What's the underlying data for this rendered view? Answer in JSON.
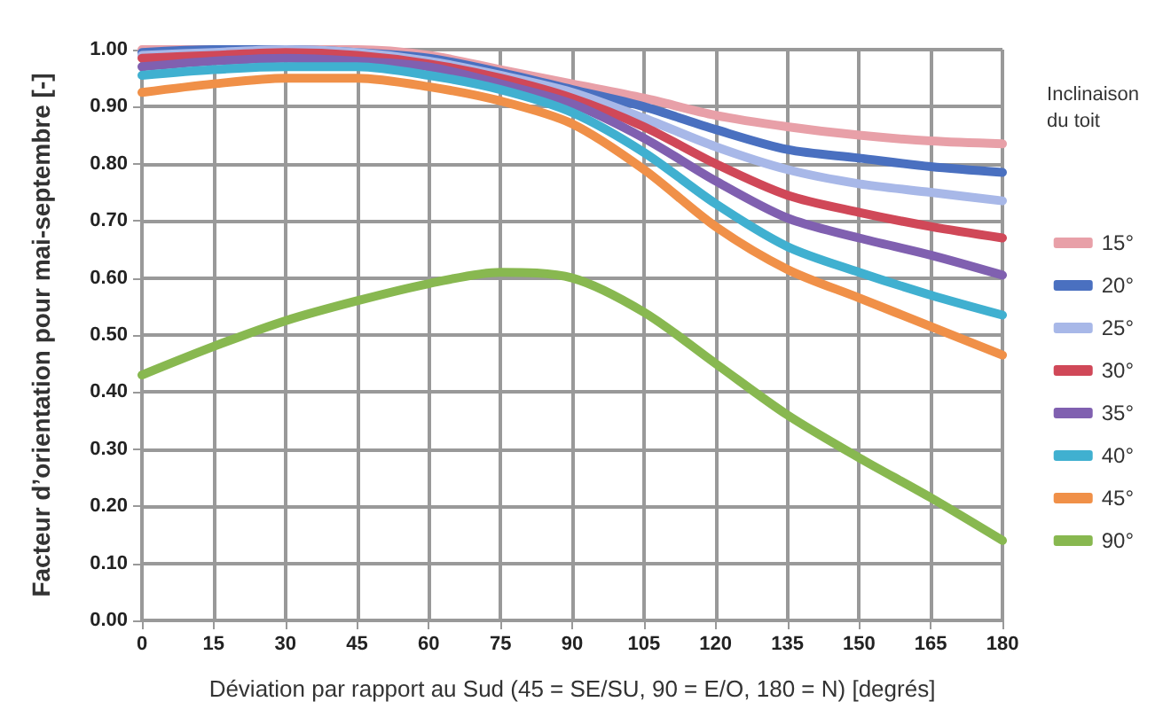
{
  "chart_data": {
    "type": "line",
    "xlabel": "Déviation par rapport au Sud (45 = SE/SU, 90 = E/O, 180 = N) [degrés]",
    "ylabel": "Facteur d’orientation pour mai-septembre [-]",
    "legend_title": "Inclinaison\ndu toit",
    "legend": "right",
    "grid": true,
    "marker": "none",
    "line_style": "solid",
    "x": [
      0,
      15,
      30,
      45,
      60,
      75,
      90,
      105,
      120,
      135,
      150,
      165,
      180
    ],
    "xlim": [
      0,
      180
    ],
    "xticks": [
      0,
      15,
      30,
      45,
      60,
      75,
      90,
      105,
      120,
      135,
      150,
      165,
      180
    ],
    "ylim": [
      0,
      1
    ],
    "yticks": [
      {
        "value": 0,
        "label": "0.00"
      },
      {
        "value": 0.1,
        "label": "0.10"
      },
      {
        "value": 0.2,
        "label": "0.20"
      },
      {
        "value": 0.3,
        "label": "0.30"
      },
      {
        "value": 0.4,
        "label": "0.40"
      },
      {
        "value": 0.5,
        "label": "0.50"
      },
      {
        "value": 0.6,
        "label": "0.60"
      },
      {
        "value": 0.7,
        "label": "0.70"
      },
      {
        "value": 0.8,
        "label": "0.80"
      },
      {
        "value": 0.9,
        "label": "0.90"
      },
      {
        "value": 1,
        "label": "1.00"
      }
    ],
    "series": [
      {
        "name": "15°",
        "color": "#e8a0a8",
        "values": [
          1.0,
          1.0,
          1.0,
          1.0,
          0.99,
          0.965,
          0.94,
          0.915,
          0.885,
          0.865,
          0.85,
          0.84,
          0.835
        ]
      },
      {
        "name": "20°",
        "color": "#4a70c0",
        "values": [
          0.995,
          1.0,
          1.0,
          0.995,
          0.985,
          0.96,
          0.93,
          0.9,
          0.86,
          0.825,
          0.81,
          0.795,
          0.785
        ]
      },
      {
        "name": "25°",
        "color": "#a8b8e8",
        "values": [
          0.99,
          0.995,
          1.0,
          0.995,
          0.98,
          0.955,
          0.925,
          0.88,
          0.83,
          0.79,
          0.765,
          0.75,
          0.735
        ]
      },
      {
        "name": "30°",
        "color": "#d04858",
        "values": [
          0.985,
          0.99,
          0.995,
          0.99,
          0.975,
          0.95,
          0.915,
          0.865,
          0.8,
          0.745,
          0.715,
          0.69,
          0.67
        ]
      },
      {
        "name": "35°",
        "color": "#8060b0",
        "values": [
          0.97,
          0.98,
          0.985,
          0.98,
          0.97,
          0.94,
          0.905,
          0.845,
          0.77,
          0.705,
          0.67,
          0.64,
          0.605
        ]
      },
      {
        "name": "40°",
        "color": "#40b0d0",
        "values": [
          0.955,
          0.965,
          0.97,
          0.97,
          0.955,
          0.93,
          0.89,
          0.82,
          0.73,
          0.655,
          0.61,
          0.57,
          0.535
        ]
      },
      {
        "name": "45°",
        "color": "#f09048",
        "values": [
          0.925,
          0.94,
          0.95,
          0.95,
          0.935,
          0.91,
          0.87,
          0.79,
          0.69,
          0.615,
          0.565,
          0.515,
          0.465
        ]
      },
      {
        "name": "90°",
        "color": "#88b850",
        "values": [
          0.43,
          0.48,
          0.525,
          0.56,
          0.59,
          0.61,
          0.6,
          0.54,
          0.45,
          0.36,
          0.285,
          0.215,
          0.14
        ]
      }
    ]
  }
}
